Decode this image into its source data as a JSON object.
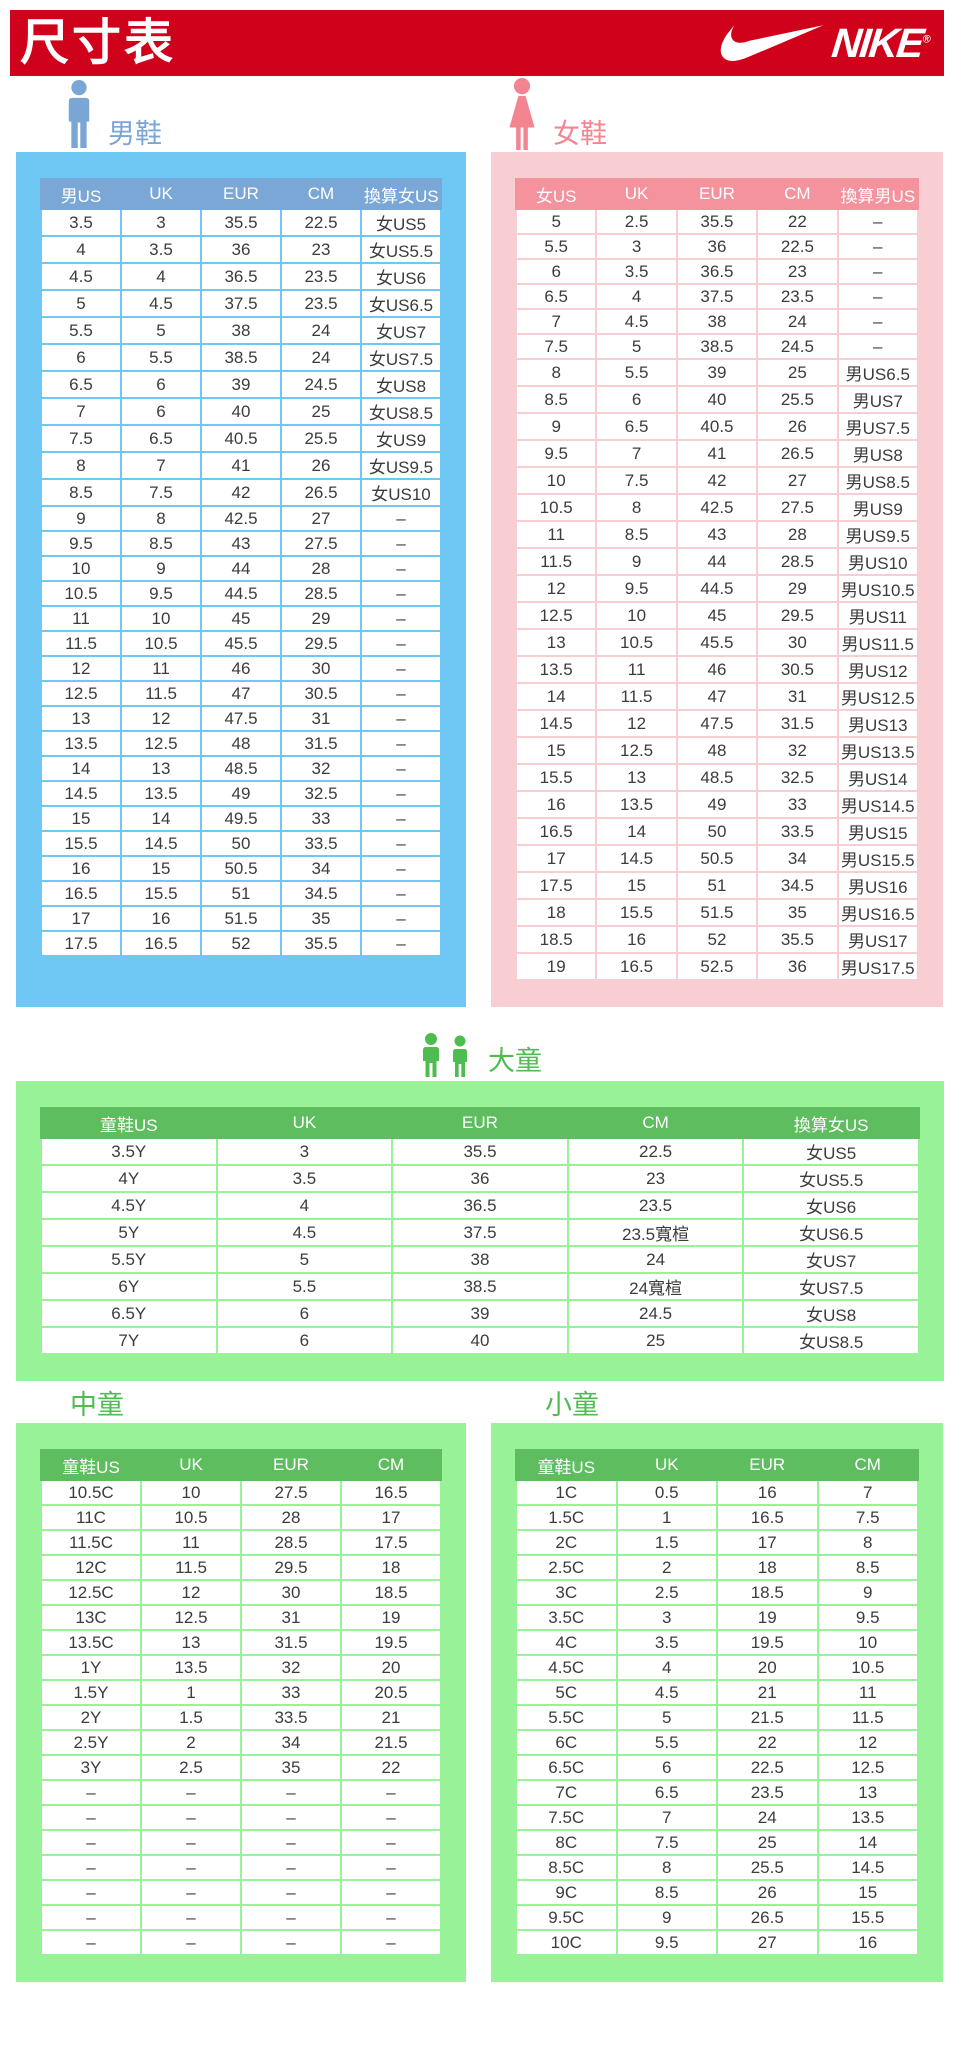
{
  "header": {
    "title": "尺寸表",
    "brand": "NIKE",
    "brand_mark": "®"
  },
  "colors": {
    "banner-red": "#d0021b",
    "men-box": "#6ec8f3",
    "men-header": "#7ba7d6",
    "men-label": "#7aa6d5",
    "women-box": "#f9ced2",
    "women-header": "#f4929e",
    "women-label": "#f2858f",
    "kids-box": "#98f298",
    "kids-header": "#5ebd5f",
    "kids-label": "#4fbc51",
    "cell-text": "#3c3c3c"
  },
  "sections": {
    "men": {
      "label": "男鞋",
      "columns": [
        "男US",
        "UK",
        "EUR",
        "CM",
        "換算女US"
      ],
      "rows": [
        [
          "3.5",
          "3",
          "35.5",
          "22.5",
          "女US5"
        ],
        [
          "4",
          "3.5",
          "36",
          "23",
          "女US5.5"
        ],
        [
          "4.5",
          "4",
          "36.5",
          "23.5",
          "女US6"
        ],
        [
          "5",
          "4.5",
          "37.5",
          "23.5",
          "女US6.5"
        ],
        [
          "5.5",
          "5",
          "38",
          "24",
          "女US7"
        ],
        [
          "6",
          "5.5",
          "38.5",
          "24",
          "女US7.5"
        ],
        [
          "6.5",
          "6",
          "39",
          "24.5",
          "女US8"
        ],
        [
          "7",
          "6",
          "40",
          "25",
          "女US8.5"
        ],
        [
          "7.5",
          "6.5",
          "40.5",
          "25.5",
          "女US9"
        ],
        [
          "8",
          "7",
          "41",
          "26",
          "女US9.5"
        ],
        [
          "8.5",
          "7.5",
          "42",
          "26.5",
          "女US10"
        ],
        [
          "9",
          "8",
          "42.5",
          "27",
          "–"
        ],
        [
          "9.5",
          "8.5",
          "43",
          "27.5",
          "–"
        ],
        [
          "10",
          "9",
          "44",
          "28",
          "–"
        ],
        [
          "10.5",
          "9.5",
          "44.5",
          "28.5",
          "–"
        ],
        [
          "11",
          "10",
          "45",
          "29",
          "–"
        ],
        [
          "11.5",
          "10.5",
          "45.5",
          "29.5",
          "–"
        ],
        [
          "12",
          "11",
          "46",
          "30",
          "–"
        ],
        [
          "12.5",
          "11.5",
          "47",
          "30.5",
          "–"
        ],
        [
          "13",
          "12",
          "47.5",
          "31",
          "–"
        ],
        [
          "13.5",
          "12.5",
          "48",
          "31.5",
          "–"
        ],
        [
          "14",
          "13",
          "48.5",
          "32",
          "–"
        ],
        [
          "14.5",
          "13.5",
          "49",
          "32.5",
          "–"
        ],
        [
          "15",
          "14",
          "49.5",
          "33",
          "–"
        ],
        [
          "15.5",
          "14.5",
          "50",
          "33.5",
          "–"
        ],
        [
          "16",
          "15",
          "50.5",
          "34",
          "–"
        ],
        [
          "16.5",
          "15.5",
          "51",
          "34.5",
          "–"
        ],
        [
          "17",
          "16",
          "51.5",
          "35",
          "–"
        ],
        [
          "17.5",
          "16.5",
          "52",
          "35.5",
          "–"
        ]
      ]
    },
    "women": {
      "label": "女鞋",
      "columns": [
        "女US",
        "UK",
        "EUR",
        "CM",
        "換算男US"
      ],
      "rows": [
        [
          "5",
          "2.5",
          "35.5",
          "22",
          "–"
        ],
        [
          "5.5",
          "3",
          "36",
          "22.5",
          "–"
        ],
        [
          "6",
          "3.5",
          "36.5",
          "23",
          "–"
        ],
        [
          "6.5",
          "4",
          "37.5",
          "23.5",
          "–"
        ],
        [
          "7",
          "4.5",
          "38",
          "24",
          "–"
        ],
        [
          "7.5",
          "5",
          "38.5",
          "24.5",
          "–"
        ],
        [
          "8",
          "5.5",
          "39",
          "25",
          "男US6.5"
        ],
        [
          "8.5",
          "6",
          "40",
          "25.5",
          "男US7"
        ],
        [
          "9",
          "6.5",
          "40.5",
          "26",
          "男US7.5"
        ],
        [
          "9.5",
          "7",
          "41",
          "26.5",
          "男US8"
        ],
        [
          "10",
          "7.5",
          "42",
          "27",
          "男US8.5"
        ],
        [
          "10.5",
          "8",
          "42.5",
          "27.5",
          "男US9"
        ],
        [
          "11",
          "8.5",
          "43",
          "28",
          "男US9.5"
        ],
        [
          "11.5",
          "9",
          "44",
          "28.5",
          "男US10"
        ],
        [
          "12",
          "9.5",
          "44.5",
          "29",
          "男US10.5"
        ],
        [
          "12.5",
          "10",
          "45",
          "29.5",
          "男US11"
        ],
        [
          "13",
          "10.5",
          "45.5",
          "30",
          "男US11.5"
        ],
        [
          "13.5",
          "11",
          "46",
          "30.5",
          "男US12"
        ],
        [
          "14",
          "11.5",
          "47",
          "31",
          "男US12.5"
        ],
        [
          "14.5",
          "12",
          "47.5",
          "31.5",
          "男US13"
        ],
        [
          "15",
          "12.5",
          "48",
          "32",
          "男US13.5"
        ],
        [
          "15.5",
          "13",
          "48.5",
          "32.5",
          "男US14"
        ],
        [
          "16",
          "13.5",
          "49",
          "33",
          "男US14.5"
        ],
        [
          "16.5",
          "14",
          "50",
          "33.5",
          "男US15"
        ],
        [
          "17",
          "14.5",
          "50.5",
          "34",
          "男US15.5"
        ],
        [
          "17.5",
          "15",
          "51",
          "34.5",
          "男US16"
        ],
        [
          "18",
          "15.5",
          "51.5",
          "35",
          "男US16.5"
        ],
        [
          "18.5",
          "16",
          "52",
          "35.5",
          "男US17"
        ],
        [
          "19",
          "16.5",
          "52.5",
          "36",
          "男US17.5"
        ]
      ]
    },
    "bigkids": {
      "label": "大童",
      "columns": [
        "童鞋US",
        "UK",
        "EUR",
        "CM",
        "換算女US"
      ],
      "rows": [
        [
          "3.5Y",
          "3",
          "35.5",
          "22.5",
          "女US5"
        ],
        [
          "4Y",
          "3.5",
          "36",
          "23",
          "女US5.5"
        ],
        [
          "4.5Y",
          "4",
          "36.5",
          "23.5",
          "女US6"
        ],
        [
          "5Y",
          "4.5",
          "37.5",
          "23.5寬楦",
          "女US6.5"
        ],
        [
          "5.5Y",
          "5",
          "38",
          "24",
          "女US7"
        ],
        [
          "6Y",
          "5.5",
          "38.5",
          "24寬楦",
          "女US7.5"
        ],
        [
          "6.5Y",
          "6",
          "39",
          "24.5",
          "女US8"
        ],
        [
          "7Y",
          "6",
          "40",
          "25",
          "女US8.5"
        ]
      ]
    },
    "midkids": {
      "label": "中童",
      "columns": [
        "童鞋US",
        "UK",
        "EUR",
        "CM"
      ],
      "rows": [
        [
          "10.5C",
          "10",
          "27.5",
          "16.5"
        ],
        [
          "11C",
          "10.5",
          "28",
          "17"
        ],
        [
          "11.5C",
          "11",
          "28.5",
          "17.5"
        ],
        [
          "12C",
          "11.5",
          "29.5",
          "18"
        ],
        [
          "12.5C",
          "12",
          "30",
          "18.5"
        ],
        [
          "13C",
          "12.5",
          "31",
          "19"
        ],
        [
          "13.5C",
          "13",
          "31.5",
          "19.5"
        ],
        [
          "1Y",
          "13.5",
          "32",
          "20"
        ],
        [
          "1.5Y",
          "1",
          "33",
          "20.5"
        ],
        [
          "2Y",
          "1.5",
          "33.5",
          "21"
        ],
        [
          "2.5Y",
          "2",
          "34",
          "21.5"
        ],
        [
          "3Y",
          "2.5",
          "35",
          "22"
        ],
        [
          "–",
          "–",
          "–",
          "–"
        ],
        [
          "–",
          "–",
          "–",
          "–"
        ],
        [
          "–",
          "–",
          "–",
          "–"
        ],
        [
          "–",
          "–",
          "–",
          "–"
        ],
        [
          "–",
          "–",
          "–",
          "–"
        ],
        [
          "–",
          "–",
          "–",
          "–"
        ],
        [
          "–",
          "–",
          "–",
          "–"
        ]
      ]
    },
    "smallkids": {
      "label": "小童",
      "columns": [
        "童鞋US",
        "UK",
        "EUR",
        "CM"
      ],
      "rows": [
        [
          "1C",
          "0.5",
          "16",
          "7"
        ],
        [
          "1.5C",
          "1",
          "16.5",
          "7.5"
        ],
        [
          "2C",
          "1.5",
          "17",
          "8"
        ],
        [
          "2.5C",
          "2",
          "18",
          "8.5"
        ],
        [
          "3C",
          "2.5",
          "18.5",
          "9"
        ],
        [
          "3.5C",
          "3",
          "19",
          "9.5"
        ],
        [
          "4C",
          "3.5",
          "19.5",
          "10"
        ],
        [
          "4.5C",
          "4",
          "20",
          "10.5"
        ],
        [
          "5C",
          "4.5",
          "21",
          "11"
        ],
        [
          "5.5C",
          "5",
          "21.5",
          "11.5"
        ],
        [
          "6C",
          "5.5",
          "22",
          "12"
        ],
        [
          "6.5C",
          "6",
          "22.5",
          "12.5"
        ],
        [
          "7C",
          "6.5",
          "23.5",
          "13"
        ],
        [
          "7.5C",
          "7",
          "24",
          "13.5"
        ],
        [
          "8C",
          "7.5",
          "25",
          "14"
        ],
        [
          "8.5C",
          "8",
          "25.5",
          "14.5"
        ],
        [
          "9C",
          "8.5",
          "26",
          "15"
        ],
        [
          "9.5C",
          "9",
          "26.5",
          "15.5"
        ],
        [
          "10C",
          "9.5",
          "27",
          "16"
        ]
      ]
    }
  }
}
